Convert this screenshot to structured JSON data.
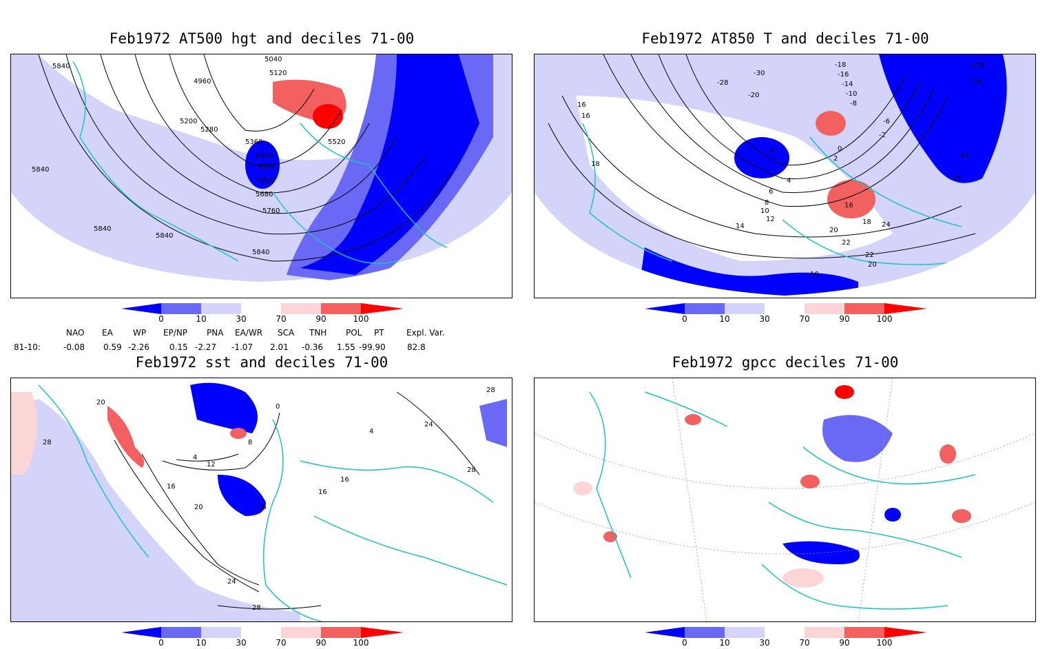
{
  "panels": [
    {
      "id": "p1",
      "title": "Feb1972 AT500 hgt and deciles 71-00",
      "contour_labels": [
        "5840",
        "4960",
        "5040",
        "5120",
        "5200",
        "5280",
        "5360",
        "5440",
        "5520",
        "5600",
        "5680",
        "5760",
        "5840",
        "5840",
        "5840",
        "5520",
        "5840"
      ]
    },
    {
      "id": "p2",
      "title": "Feb1972 AT850 T and deciles 71-00",
      "contour_labels": [
        "16",
        "16",
        "18",
        "-28",
        "-20",
        "-30",
        "-18",
        "-16",
        "-14",
        "-10",
        "-8",
        "-6",
        "-4",
        "-2",
        "0",
        "2",
        "4",
        "6",
        "8",
        "10",
        "12",
        "14",
        "16",
        "18",
        "20",
        "22",
        "22",
        "20",
        "18",
        "24",
        "14",
        "16",
        "18",
        "<18"
      ]
    },
    {
      "id": "p3",
      "title": "Feb1972 sst and deciles 71-00",
      "contour_labels": [
        "20",
        "28",
        "0",
        "8",
        "4",
        "12",
        "16",
        "20",
        "24",
        "28",
        "24",
        "28",
        "16",
        "16",
        "16",
        "4",
        "28"
      ]
    },
    {
      "id": "p4",
      "title": "Feb1972 gpcc deciles 71-00",
      "contour_labels": []
    }
  ],
  "colorbar": {
    "ticks": [
      "0",
      "10",
      "30",
      "70",
      "90",
      "100"
    ],
    "colors": {
      "d0": "#0000ff",
      "d10": "#6969f5",
      "d30": "#d4d4fa",
      "mid": "#ffffff",
      "d70": "#fcd6d6",
      "d90": "#f26060",
      "d100": "#ff0000"
    }
  },
  "map_colors": {
    "coast": "#19c3c3",
    "contour": "#000000",
    "grid": "#9a9a9a"
  },
  "indices": {
    "headers": [
      "NAO",
      "EA",
      "WP",
      "EP/NP",
      "PNA",
      "EA/WR",
      "SCA",
      "TNH",
      "POL",
      "PT",
      "Expl. Var."
    ],
    "row_label": "81-10:",
    "values": [
      "-0.08",
      "0.59",
      "-2.26",
      "0.15",
      "-2.27",
      "-1.07",
      "2.01",
      "-0.36",
      "1.55",
      "-99.90",
      "82.8"
    ]
  }
}
